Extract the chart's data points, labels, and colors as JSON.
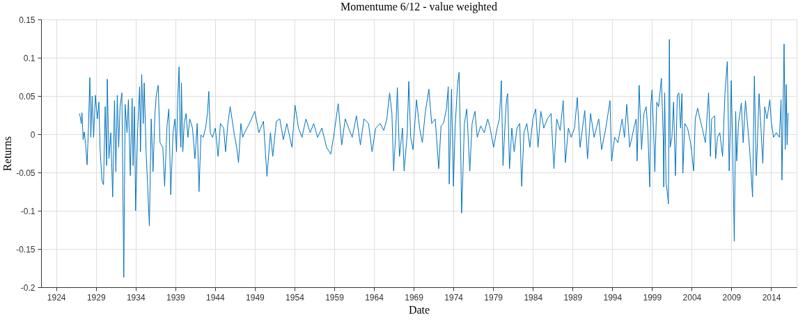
{
  "chart_data": {
    "type": "line",
    "title": "Momentume 6/12 - value weighted",
    "xlabel": "Date",
    "ylabel": "Returns",
    "xlim": [
      1922.1,
      2017.2
    ],
    "xticks": [
      1924,
      1929,
      1934,
      1939,
      1944,
      1949,
      1954,
      1959,
      1964,
      1969,
      1974,
      1979,
      1984,
      1989,
      1994,
      1999,
      2004,
      2009,
      2014
    ],
    "ylim": [
      -0.2,
      0.15
    ],
    "yticks": [
      -0.2,
      -0.15,
      -0.1,
      -0.05,
      0,
      0.05,
      0.1,
      0.15
    ],
    "grid": true,
    "line_style": "solid",
    "marker": "none",
    "series": [
      {
        "color": "#0072bd",
        "x": [
          1926.95,
          1927.16,
          1927.25,
          1927.39,
          1927.54,
          1927.71,
          1927.89,
          1928.06,
          1928.24,
          1928.36,
          1928.53,
          1928.71,
          1928.94,
          1929.18,
          1929.38,
          1929.53,
          1929.76,
          1929.96,
          1930.17,
          1930.35,
          1930.43,
          1930.64,
          1930.87,
          1931.11,
          1931.34,
          1931.51,
          1931.69,
          1931.87,
          1932.04,
          1932.27,
          1932.51,
          1932.68,
          1932.92,
          1933.09,
          1933.33,
          1933.56,
          1933.68,
          1933.85,
          1934.0,
          1934.26,
          1934.5,
          1934.61,
          1934.76,
          1934.96,
          1935.08,
          1935.32,
          1935.49,
          1935.73,
          1935.96,
          1936.19,
          1936.43,
          1936.6,
          1936.84,
          1937.07,
          1937.42,
          1937.65,
          1937.95,
          1938.18,
          1938.42,
          1938.71,
          1938.94,
          1939.15,
          1939.29,
          1939.47,
          1939.58,
          1939.7,
          1939.76,
          1939.94,
          1940.11,
          1940.35,
          1940.58,
          1940.81,
          1941.16,
          1941.46,
          1941.75,
          1941.98,
          1942.22,
          1942.51,
          1942.8,
          1943.04,
          1943.21,
          1943.39,
          1943.68,
          1944.03,
          1944.38,
          1944.67,
          1945.08,
          1945.32,
          1945.61,
          1945.9,
          1946.13,
          1946.43,
          1946.72,
          1946.95,
          1947.25,
          1947.48,
          1947.71,
          1948.32,
          1949.0,
          1949.5,
          1950.09,
          1950.53,
          1950.97,
          1951.26,
          1951.71,
          1952.15,
          1952.59,
          1953.03,
          1953.68,
          1954.06,
          1954.5,
          1954.94,
          1955.44,
          1955.97,
          1956.41,
          1956.91,
          1957.44,
          1958.03,
          1958.56,
          1958.91,
          1959.5,
          1959.94,
          1960.38,
          1960.82,
          1961.26,
          1961.79,
          1962.29,
          1962.74,
          1963.32,
          1963.76,
          1964.21,
          1964.79,
          1965.24,
          1965.62,
          1965.97,
          1966.26,
          1966.47,
          1966.71,
          1966.94,
          1967.21,
          1967.59,
          1967.79,
          1968.18,
          1968.38,
          1968.62,
          1968.91,
          1969.35,
          1969.74,
          1970.09,
          1970.44,
          1970.91,
          1971.26,
          1971.71,
          1972.15,
          1972.44,
          1972.74,
          1973.12,
          1973.35,
          1973.47,
          1973.76,
          1974.0,
          1974.21,
          1974.5,
          1974.71,
          1974.94,
          1975.03,
          1975.18,
          1975.38,
          1975.68,
          1976.06,
          1976.35,
          1976.71,
          1977.0,
          1977.44,
          1977.88,
          1978.32,
          1978.62,
          1979.06,
          1979.5,
          1979.79,
          1980.03,
          1980.24,
          1980.53,
          1980.68,
          1980.82,
          1981.06,
          1981.35,
          1981.65,
          1982.0,
          1982.35,
          1982.59,
          1982.88,
          1983.24,
          1983.62,
          1984.0,
          1984.35,
          1984.65,
          1985.0,
          1985.38,
          1985.82,
          1986.29,
          1986.65,
          1987.0,
          1987.44,
          1987.82,
          1988.09,
          1988.47,
          1988.82,
          1989.24,
          1989.59,
          1989.94,
          1990.53,
          1990.88,
          1991.26,
          1991.71,
          1992.29,
          1992.65,
          1993.18,
          1993.71,
          1993.91,
          1994.29,
          1994.71,
          1995.24,
          1995.53,
          1995.82,
          1996.18,
          1996.47,
          1996.71,
          1997.0,
          1997.12,
          1997.38,
          1997.68,
          1997.97,
          1998.26,
          1998.47,
          1998.71,
          1998.85,
          1999.0,
          1999.24,
          1999.35,
          1999.59,
          1999.82,
          2000.03,
          2000.18,
          2000.41,
          2000.47,
          2000.59,
          2000.76,
          2000.91,
          2001.06,
          2001.18,
          2001.29,
          2001.5,
          2001.71,
          2001.94,
          2002.18,
          2002.38,
          2002.59,
          2002.76,
          2002.88,
          2003.12,
          2003.47,
          2003.85,
          2004.24,
          2004.44,
          2004.74,
          2005.03,
          2005.32,
          2005.71,
          2006.12,
          2006.35,
          2006.5,
          2006.88,
          2007.0,
          2007.24,
          2007.53,
          2007.88,
          2008.18,
          2008.47,
          2008.71,
          2008.85,
          2008.97,
          2009.15,
          2009.35,
          2009.53,
          2009.65,
          2009.88,
          2010.24,
          2010.47,
          2010.76,
          2011.06,
          2011.29,
          2011.65,
          2011.88,
          2012.12,
          2012.47,
          2012.71,
          2012.94,
          2013.18,
          2013.47,
          2013.82,
          2014.0,
          2014.29,
          2014.65,
          2015.03,
          2015.24,
          2015.35,
          2015.62,
          2015.76,
          2015.88,
          2016.0,
          2016.12
        ],
        "values": [
          0.027,
          0.014,
          0.028,
          -0.007,
          0.003,
          -0.014,
          -0.04,
          0.008,
          0.074,
          -0.004,
          0.05,
          -0.004,
          0.051,
          0.02,
          0.042,
          -0.02,
          -0.06,
          -0.066,
          0.036,
          -0.041,
          0.072,
          -0.032,
          0.002,
          -0.082,
          0.044,
          -0.049,
          0.051,
          -0.017,
          0.036,
          0.054,
          -0.187,
          0.039,
          0.002,
          0.045,
          -0.054,
          0.047,
          -0.041,
          0.036,
          -0.1,
          0.008,
          0.062,
          -0.023,
          0.078,
          0.014,
          0.067,
          -0.023,
          -0.063,
          -0.12,
          0.02,
          -0.049,
          0.027,
          0.051,
          0.064,
          -0.011,
          -0.017,
          -0.068,
          0.011,
          0.033,
          -0.079,
          0.002,
          0.02,
          -0.023,
          0.045,
          0.088,
          0.008,
          -0.017,
          0.067,
          -0.023,
          0.014,
          0.027,
          -0.004,
          0.02,
          0.008,
          -0.032,
          0.014,
          -0.075,
          -0.001,
          -0.004,
          0.008,
          0.027,
          0.056,
          0.002,
          -0.004,
          0.008,
          -0.029,
          0.014,
          0.008,
          -0.023,
          0.014,
          0.036,
          0.02,
          -0.001,
          -0.017,
          -0.037,
          0.014,
          -0.004,
          0.002,
          0.014,
          0.03,
          0.002,
          0.017,
          -0.055,
          0.002,
          -0.029,
          0.017,
          0.02,
          -0.007,
          0.014,
          -0.017,
          0.038,
          0.008,
          -0.004,
          0.02,
          0.002,
          0.014,
          -0.004,
          0.008,
          -0.017,
          -0.026,
          -0.004,
          0.04,
          -0.014,
          0.02,
          0.008,
          -0.004,
          0.024,
          -0.014,
          0.02,
          0.014,
          -0.023,
          0.008,
          0.014,
          0.005,
          0.02,
          0.054,
          0.027,
          -0.048,
          -0.004,
          0.061,
          -0.029,
          0.008,
          -0.048,
          -0.001,
          0.069,
          -0.004,
          -0.02,
          0.045,
          0.008,
          -0.011,
          0.027,
          0.059,
          0.014,
          0.02,
          -0.045,
          0.011,
          0.014,
          0.033,
          0.062,
          -0.065,
          0.059,
          -0.068,
          0.008,
          0.062,
          0.081,
          -0.035,
          -0.103,
          -0.057,
          0.014,
          0.033,
          -0.048,
          0.014,
          0.03,
          -0.004,
          0.011,
          0.002,
          0.02,
          0.008,
          -0.017,
          0.008,
          0.02,
          0.07,
          -0.041,
          0.02,
          0.045,
          0.053,
          -0.045,
          0.008,
          -0.023,
          0.008,
          0.014,
          -0.068,
          0.002,
          0.014,
          -0.017,
          0.02,
          0.033,
          -0.017,
          0.03,
          0.008,
          0.02,
          0.027,
          -0.045,
          0.02,
          0.005,
          0.044,
          -0.037,
          0.008,
          -0.004,
          0.008,
          0.048,
          -0.017,
          0.031,
          -0.032,
          0.027,
          -0.004,
          0.02,
          -0.02,
          0.008,
          0.044,
          -0.035,
          -0.004,
          -0.011,
          0.02,
          -0.004,
          0.039,
          -0.017,
          -0.004,
          0.008,
          0.02,
          -0.035,
          0.064,
          -0.02,
          0.027,
          0.036,
          0.005,
          -0.069,
          0.039,
          0.058,
          -0.011,
          -0.049,
          0.042,
          0.036,
          0.058,
          0.073,
          -0.004,
          -0.069,
          0.054,
          -0.063,
          -0.075,
          -0.091,
          0.124,
          -0.017,
          -0.004,
          0.042,
          -0.054,
          0.051,
          0.054,
          0.008,
          0.053,
          -0.051,
          0.014,
          0.008,
          -0.011,
          -0.048,
          0.02,
          0.034,
          0.02,
          0.008,
          -0.011,
          0.054,
          -0.029,
          0.02,
          0.024,
          -0.032,
          -0.004,
          0.002,
          -0.029,
          0.054,
          0.095,
          -0.048,
          0.008,
          0.07,
          -0.02,
          -0.14,
          0.03,
          -0.035,
          0.014,
          0.041,
          -0.011,
          0.044,
          0.008,
          -0.02,
          -0.082,
          0.076,
          -0.054,
          0.053,
          0.008,
          -0.038,
          0.036,
          0.02,
          0.045,
          0.017,
          -0.004,
          0.002,
          -0.004,
          0.045,
          -0.06,
          0.118,
          -0.02,
          0.065,
          -0.014,
          0.028
        ]
      }
    ]
  }
}
